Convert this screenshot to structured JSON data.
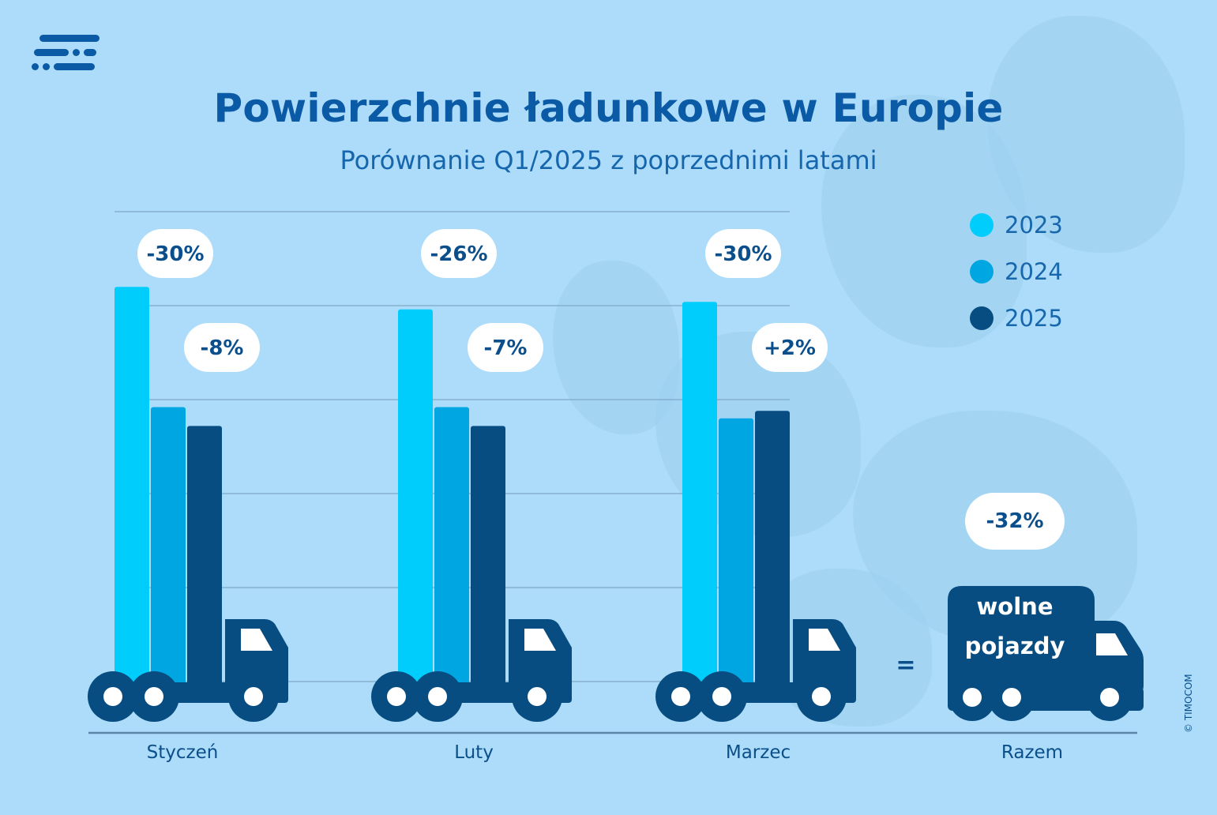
{
  "title": "Powierzchnie ładunkowe w Europie",
  "subtitle": "Porównanie Q1/2025 z poprzednimi latami",
  "copyright": "© TIMOCOM",
  "colors": {
    "2023": "#00cdfb",
    "2024": "#00a6e2",
    "2025": "#084d81",
    "background": "#acdcf9",
    "title": "#0a5aa6",
    "pill": "#ffffff"
  },
  "legend": [
    {
      "label": "2023",
      "color": "#00cdfb"
    },
    {
      "label": "2024",
      "color": "#00a6e2"
    },
    {
      "label": "2025",
      "color": "#084d81"
    }
  ],
  "total": {
    "label": "Razem",
    "change": "-32%",
    "equals": "=",
    "truck_text_line1": "wolne",
    "truck_text_line2": "pojazdy",
    "icon": "truck-icon"
  },
  "chart_data": {
    "type": "bar",
    "title": "Powierzchnie ładunkowe w Europie",
    "subtitle": "Porównanie Q1/2025 z poprzednimi latami",
    "categories": [
      "Styczeń",
      "Luty",
      "Marzec"
    ],
    "series": [
      {
        "name": "2023",
        "values": [
          105,
          99,
          101
        ]
      },
      {
        "name": "2024",
        "values": [
          73,
          73,
          70
        ]
      },
      {
        "name": "2025",
        "values": [
          68,
          68,
          72
        ]
      }
    ],
    "annotations": [
      {
        "category": "Styczeń",
        "upper": "-30%",
        "lower": "-8%"
      },
      {
        "category": "Luty",
        "upper": "-26%",
        "lower": "-7%"
      },
      {
        "category": "Marzec",
        "upper": "-30%",
        "lower": "+2%"
      }
    ],
    "ylim": [
      0,
      125
    ],
    "grid": true,
    "legend_position": "top-right",
    "xlabel": "",
    "ylabel": ""
  }
}
